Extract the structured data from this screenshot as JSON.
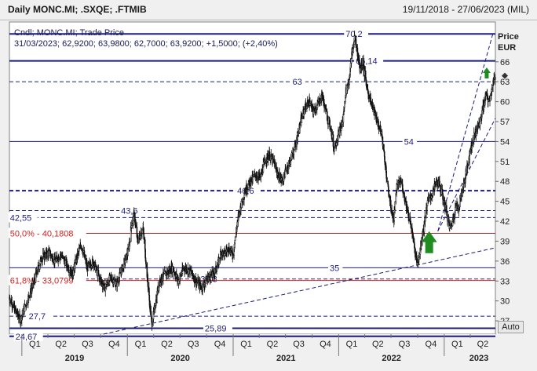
{
  "header": {
    "title": "Daily MONC.MI; .SXQE; .FTMIB",
    "range": "19/11/2018 - 27/06/2023 (MIL)"
  },
  "auto_label": "Auto",
  "chart_data": {
    "type": "candlestick",
    "title": "",
    "legend": {
      "line1": "Cndl; MONC.MI; Trade Price",
      "line2": "31/03/2023; 62,9200; 63,9800; 62,7000; 63,9200; +1,5000; (+2,40%)"
    },
    "ylabel": "Price",
    "yunit": "EUR",
    "ylim": [
      25,
      72
    ],
    "yticks": [
      27,
      30,
      33,
      36,
      39,
      42,
      45,
      48,
      51,
      54,
      57,
      60,
      63,
      66
    ],
    "xlim": [
      "2018-11-19",
      "2023-06-27"
    ],
    "quarter_ticks": [
      "Q1",
      "Q2",
      "Q3",
      "Q4",
      "Q1",
      "Q2",
      "Q3",
      "Q4",
      "Q1",
      "Q2",
      "Q3",
      "Q4",
      "Q1",
      "Q2",
      "Q3",
      "Q4",
      "Q1",
      "Q2"
    ],
    "years": [
      "2019",
      "2020",
      "2021",
      "2022",
      "2023"
    ],
    "price_path": [
      [
        "2018-11-19",
        30.5
      ],
      [
        "2018-12-10",
        28.5
      ],
      [
        "2018-12-27",
        27.2
      ],
      [
        "2019-01-15",
        29.5
      ],
      [
        "2019-02-05",
        32.0
      ],
      [
        "2019-02-20",
        34.0
      ],
      [
        "2019-03-10",
        36.5
      ],
      [
        "2019-04-05",
        37.3
      ],
      [
        "2019-04-25",
        36.0
      ],
      [
        "2019-05-15",
        37.0
      ],
      [
        "2019-06-05",
        35.5
      ],
      [
        "2019-06-25",
        34.0
      ],
      [
        "2019-07-10",
        36.5
      ],
      [
        "2019-07-25",
        38.5
      ],
      [
        "2019-08-15",
        35.0
      ],
      [
        "2019-09-05",
        36.0
      ],
      [
        "2019-09-25",
        33.5
      ],
      [
        "2019-10-15",
        32.0
      ],
      [
        "2019-11-05",
        33.5
      ],
      [
        "2019-11-25",
        32.5
      ],
      [
        "2019-12-15",
        35.0
      ],
      [
        "2020-01-05",
        37.5
      ],
      [
        "2020-01-15",
        41.5
      ],
      [
        "2020-01-25",
        43.0
      ],
      [
        "2020-02-05",
        39.0
      ],
      [
        "2020-02-15",
        40.0
      ],
      [
        "2020-02-24",
        41.0
      ],
      [
        "2020-03-05",
        36.0
      ],
      [
        "2020-03-15",
        31.0
      ],
      [
        "2020-03-25",
        26.5
      ],
      [
        "2020-04-05",
        29.0
      ],
      [
        "2020-04-20",
        33.0
      ],
      [
        "2020-05-10",
        34.0
      ],
      [
        "2020-06-05",
        35.0
      ],
      [
        "2020-06-25",
        33.0
      ],
      [
        "2020-07-15",
        35.0
      ],
      [
        "2020-08-05",
        34.5
      ],
      [
        "2020-08-25",
        33.0
      ],
      [
        "2020-09-15",
        32.0
      ],
      [
        "2020-10-05",
        33.5
      ],
      [
        "2020-10-25",
        34.0
      ],
      [
        "2020-11-10",
        35.5
      ],
      [
        "2020-11-20",
        37.5
      ],
      [
        "2020-12-01",
        37.0
      ],
      [
        "2020-12-15",
        38.0
      ],
      [
        "2020-12-31",
        37.0
      ],
      [
        "2021-01-10",
        40.0
      ],
      [
        "2021-01-20",
        43.0
      ],
      [
        "2021-02-01",
        45.0
      ],
      [
        "2021-02-10",
        46.5
      ],
      [
        "2021-03-01",
        48.0
      ],
      [
        "2021-03-20",
        49.0
      ],
      [
        "2021-04-05",
        48.5
      ],
      [
        "2021-04-20",
        51.0
      ],
      [
        "2021-05-05",
        52.0
      ],
      [
        "2021-05-20",
        51.0
      ],
      [
        "2021-06-05",
        49.0
      ],
      [
        "2021-06-20",
        48.0
      ],
      [
        "2021-07-05",
        50.0
      ],
      [
        "2021-07-20",
        51.5
      ],
      [
        "2021-08-05",
        53.5
      ],
      [
        "2021-08-20",
        56.5
      ],
      [
        "2021-09-05",
        59.0
      ],
      [
        "2021-09-20",
        60.0
      ],
      [
        "2021-10-05",
        58.5
      ],
      [
        "2021-10-20",
        59.5
      ],
      [
        "2021-11-05",
        61.0
      ],
      [
        "2021-11-20",
        58.0
      ],
      [
        "2021-12-05",
        56.0
      ],
      [
        "2021-12-15",
        53.0
      ],
      [
        "2021-12-31",
        55.0
      ],
      [
        "2022-01-15",
        57.0
      ],
      [
        "2022-01-25",
        61.5
      ],
      [
        "2022-02-05",
        63.0
      ],
      [
        "2022-02-15",
        67.0
      ],
      [
        "2022-02-25",
        69.5
      ],
      [
        "2022-03-05",
        68.0
      ],
      [
        "2022-03-15",
        65.0
      ],
      [
        "2022-03-25",
        66.0
      ],
      [
        "2022-04-05",
        63.0
      ],
      [
        "2022-04-15",
        61.0
      ],
      [
        "2022-04-30",
        59.0
      ],
      [
        "2022-05-15",
        57.0
      ],
      [
        "2022-05-30",
        55.0
      ],
      [
        "2022-06-10",
        51.0
      ],
      [
        "2022-06-20",
        47.0
      ],
      [
        "2022-07-01",
        44.0
      ],
      [
        "2022-07-10",
        42.0
      ],
      [
        "2022-07-20",
        47.0
      ],
      [
        "2022-08-05",
        48.0
      ],
      [
        "2022-08-20",
        45.0
      ],
      [
        "2022-09-05",
        42.0
      ],
      [
        "2022-09-20",
        38.0
      ],
      [
        "2022-09-30",
        35.5
      ],
      [
        "2022-10-10",
        38.0
      ],
      [
        "2022-10-25",
        42.0
      ],
      [
        "2022-11-05",
        45.0
      ],
      [
        "2022-11-20",
        46.0
      ],
      [
        "2022-12-05",
        48.0
      ],
      [
        "2022-12-15",
        47.5
      ],
      [
        "2022-12-31",
        45.0
      ],
      [
        "2023-01-10",
        43.0
      ],
      [
        "2023-01-20",
        41.0
      ],
      [
        "2023-01-30",
        42.0
      ],
      [
        "2023-02-10",
        44.5
      ],
      [
        "2023-02-20",
        44.0
      ],
      [
        "2023-03-01",
        46.0
      ],
      [
        "2023-03-15",
        48.5
      ],
      [
        "2023-03-25",
        51.0
      ],
      [
        "2023-04-05",
        53.5
      ],
      [
        "2023-04-20",
        55.5
      ],
      [
        "2023-05-05",
        57.0
      ],
      [
        "2023-05-15",
        59.0
      ],
      [
        "2023-05-25",
        61.0
      ],
      [
        "2023-06-05",
        60.0
      ],
      [
        "2023-06-15",
        62.0
      ],
      [
        "2023-06-27",
        63.9
      ]
    ],
    "h_levels": [
      {
        "value": 70.2,
        "label": "70,2",
        "style": "solid",
        "at": "2022-01-25"
      },
      {
        "value": 66.14,
        "label": "66,14",
        "style": "solid",
        "at": "2022-03-01"
      },
      {
        "value": 63,
        "label": "63",
        "style": "dashed",
        "at": "2021-07-25"
      },
      {
        "value": 54,
        "label": "54",
        "style": "solid",
        "at": "2022-08-15"
      },
      {
        "value": 46.6,
        "label": "46,6",
        "style": "dashed-bold",
        "at": "2021-01-15"
      },
      {
        "value": 43.6,
        "label": "43,6",
        "style": "dashed",
        "at": "2019-12-10"
      },
      {
        "value": 42.55,
        "label": "42,55",
        "style": "dashed",
        "at": "2018-11-21"
      },
      {
        "value": 40.1808,
        "label": "50,0% - 40,1808",
        "style": "fib",
        "at": "2018-11-21"
      },
      {
        "value": 35,
        "label": "35",
        "style": "solid",
        "at": "2021-12-01"
      },
      {
        "value": 33.3,
        "label": "33,3",
        "style": "dashed",
        "at": "2020-09-10"
      },
      {
        "value": 33.0799,
        "label": "61,8% - 33,0799",
        "style": "fib",
        "at": "2018-11-21"
      },
      {
        "value": 27.7,
        "label": "27,7",
        "style": "dashed",
        "at": "2019-01-25"
      },
      {
        "value": 25.89,
        "label": "25,89",
        "style": "solid",
        "at": "2020-09-25"
      },
      {
        "value": 24.67,
        "label": "24,67",
        "style": "solid",
        "at": "2018-12-10"
      }
    ],
    "trend_lines": [
      {
        "from": [
          "2019-10-10",
          25.0
        ],
        "to": [
          "2023-06-27",
          38.0
        ],
        "style": "dashed"
      },
      {
        "from": [
          "2022-12-10",
          40.5
        ],
        "to": [
          "2023-06-20",
          70.5
        ],
        "style": "dashed"
      },
      {
        "from": [
          "2022-12-10",
          40.5
        ],
        "to": [
          "2023-06-27",
          57.5
        ],
        "style": "dashed"
      }
    ],
    "arrows": [
      {
        "date": "2022-11-10",
        "value": 37.2,
        "size": "large",
        "color": "#1e8c1e"
      },
      {
        "date": "2023-05-28",
        "value": 63.5,
        "size": "small",
        "color": "#1e8c1e"
      }
    ],
    "last_marker": {
      "value": 63.9
    }
  }
}
